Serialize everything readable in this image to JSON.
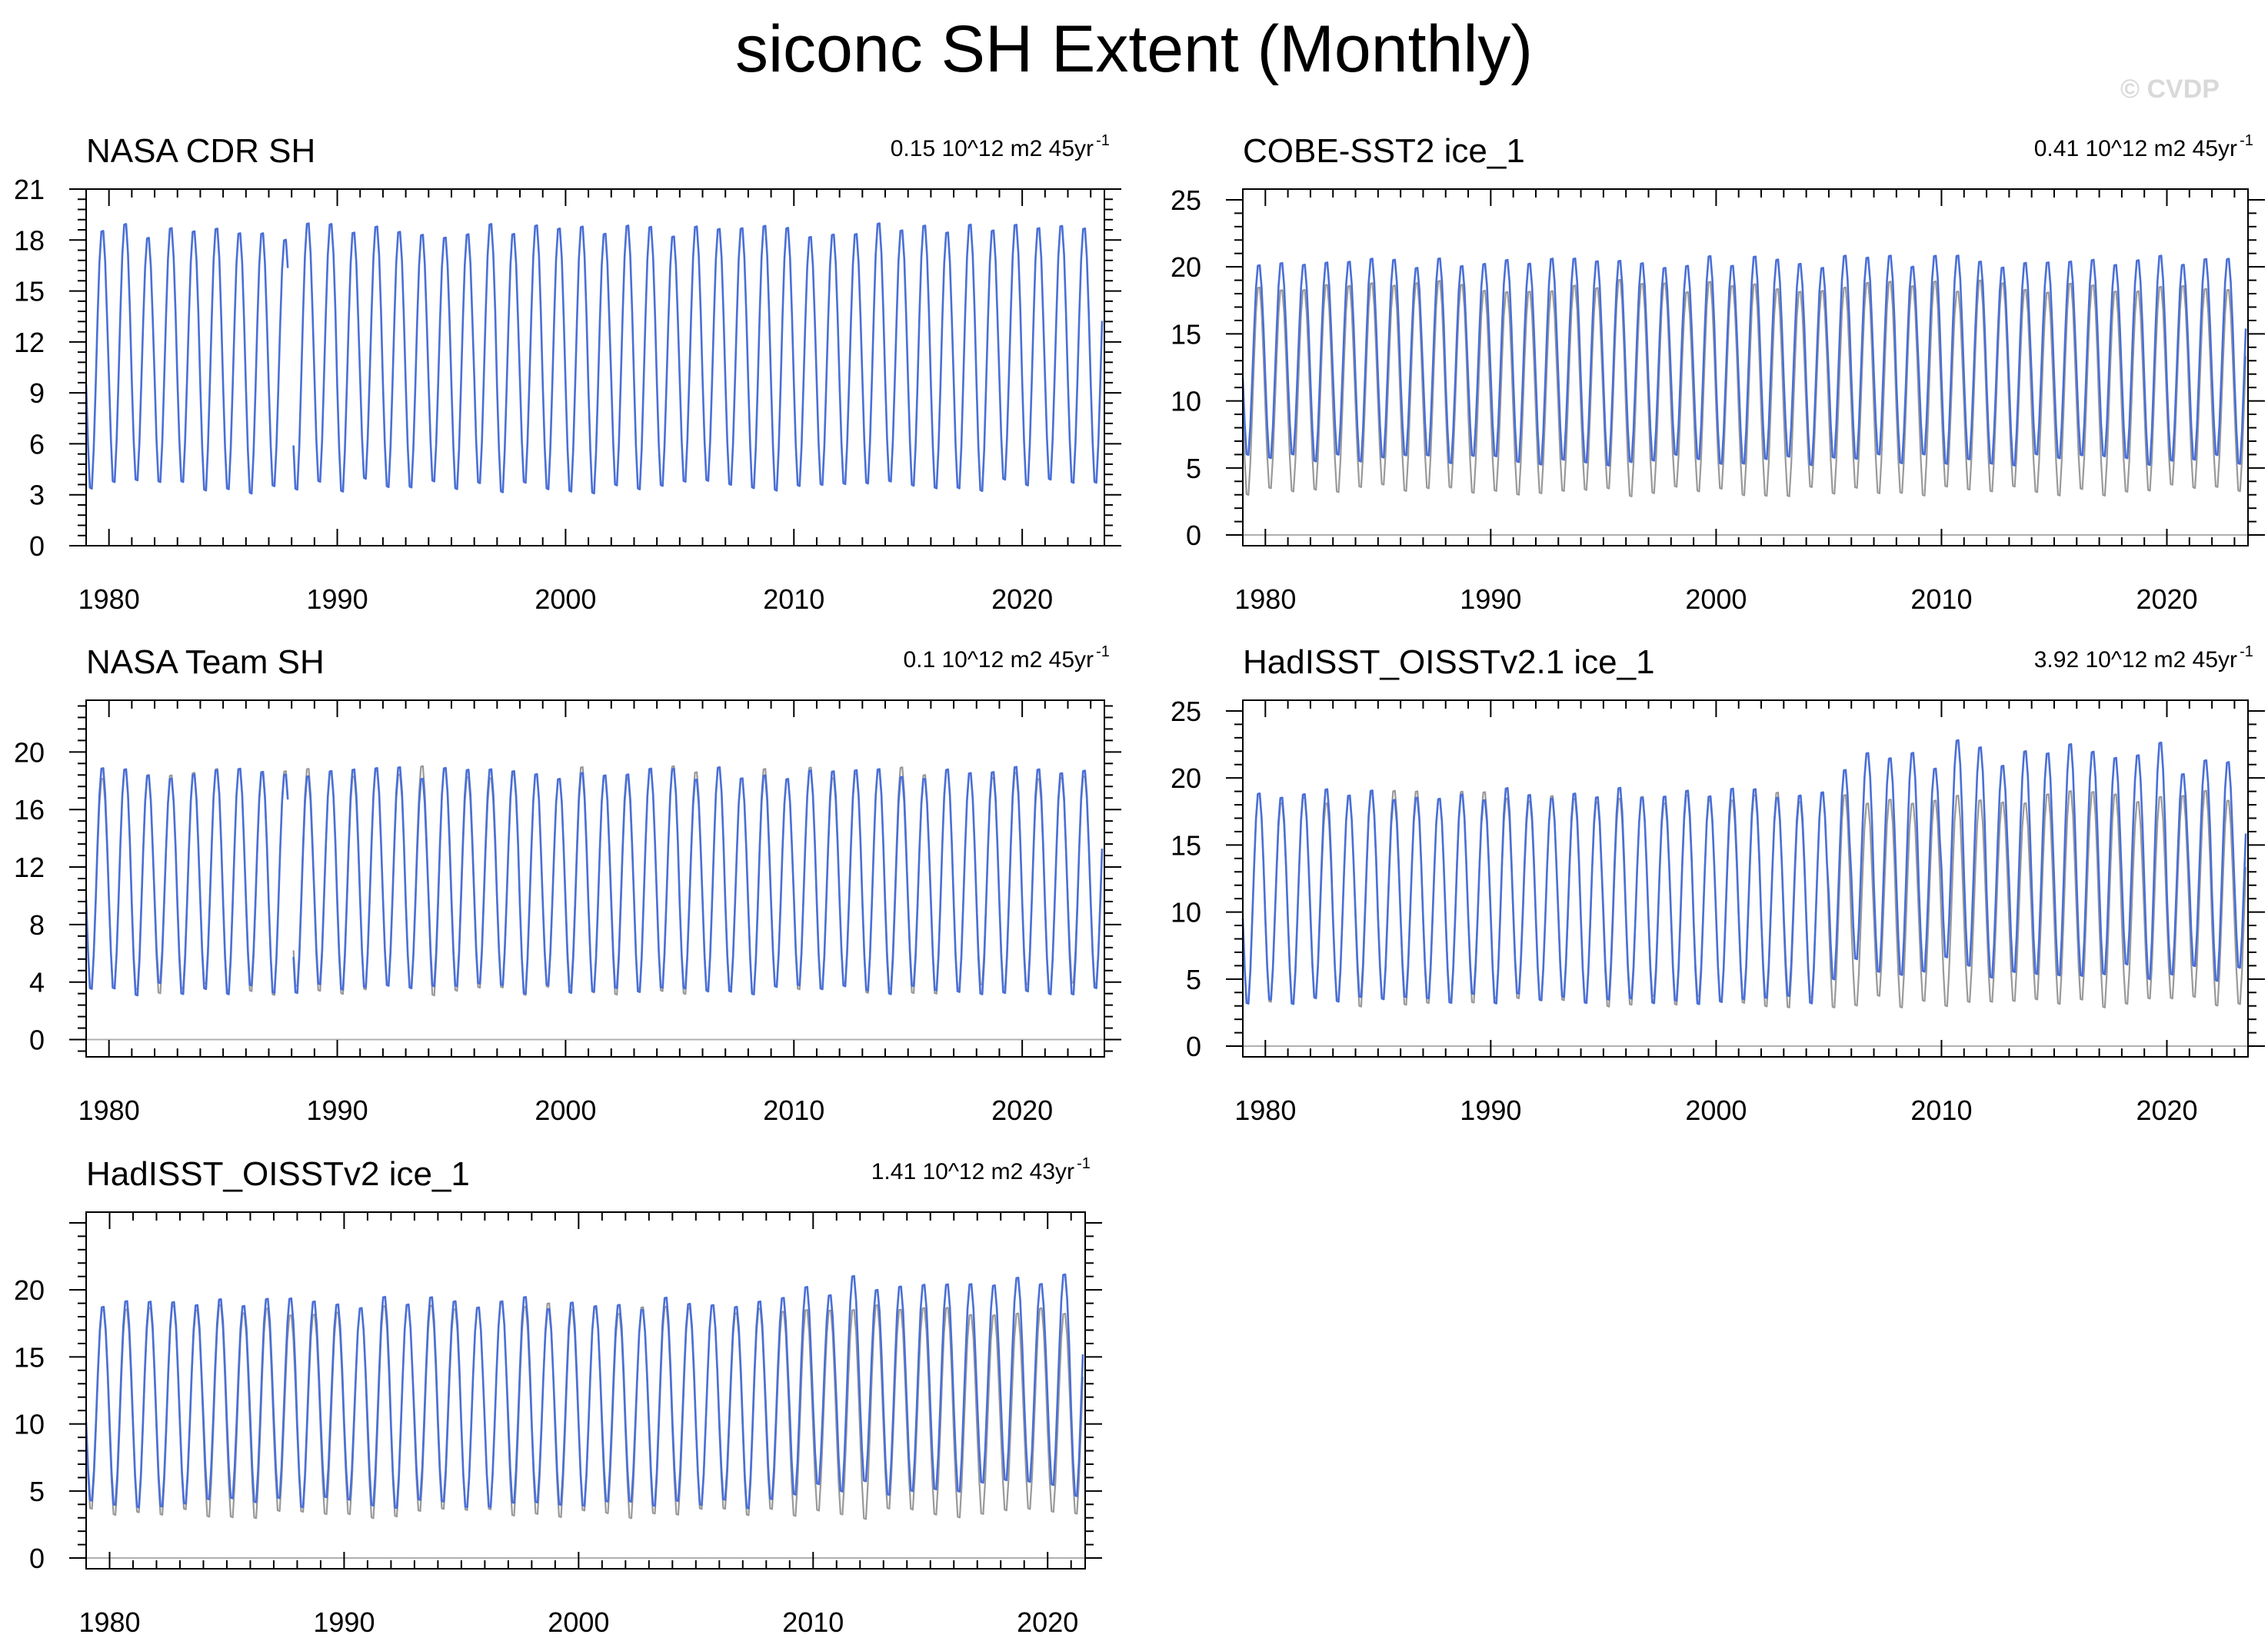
{
  "title": "siconc SH Extent (Monthly)",
  "watermark": "© CVDP",
  "chart_data": [
    {
      "type": "line",
      "title": "NASA CDR SH",
      "trend": "0.15 10^12 m2 45yr",
      "trend_exp": "-1",
      "xlim": [
        1979,
        2023.6
      ],
      "ylim": [
        0,
        21
      ],
      "xticks": [
        1980,
        1990,
        2000,
        2010,
        2020
      ],
      "yticks": [
        0,
        3,
        6,
        9,
        12,
        15,
        18,
        21
      ],
      "gap": [
        1987.9,
        1988.05
      ],
      "series": [
        {
          "color": "#4a6fd6",
          "x_start": 1979.0,
          "x_end": 2023.5,
          "mean_max": 18.7,
          "mean_min": 3.2,
          "amp_trend": 0.0,
          "min_trend": 0.0,
          "phase": 0.71,
          "seed": 1
        }
      ]
    },
    {
      "type": "line",
      "title": "COBE-SST2 ice_1",
      "trend": "0.41 10^12 m2 45yr",
      "trend_exp": "-1",
      "xlim": [
        1979,
        2023.6
      ],
      "ylim": [
        -0.8,
        25.8
      ],
      "xticks": [
        1980,
        1990,
        2000,
        2010,
        2020
      ],
      "yticks": [
        0,
        5,
        10,
        15,
        20,
        25
      ],
      "series": [
        {
          "color": "#999999",
          "x_start": 1979.0,
          "x_end": 2023.5,
          "mean_max": 18.8,
          "mean_min": 3.0,
          "amp_trend": 0.0,
          "min_trend": 0.0,
          "phase": 0.71,
          "seed": 2
        },
        {
          "color": "#4a6fd6",
          "x_start": 1979.0,
          "x_end": 2023.5,
          "mean_max": 20.6,
          "mean_min": 5.3,
          "amp_trend": 0.0,
          "min_trend": 0.0,
          "phase": 0.71,
          "seed": 3
        }
      ]
    },
    {
      "type": "line",
      "title": "NASA Team SH",
      "trend": "0.1 10^12 m2 45yr",
      "trend_exp": "-1",
      "xlim": [
        1979,
        2023.6
      ],
      "ylim": [
        -1.2,
        23.6
      ],
      "xticks": [
        1980,
        1990,
        2000,
        2010,
        2020
      ],
      "yticks": [
        0,
        4,
        8,
        12,
        16,
        20
      ],
      "gap": [
        1987.9,
        1988.05
      ],
      "series": [
        {
          "color": "#999999",
          "x_start": 1979.0,
          "x_end": 2023.5,
          "mean_max": 18.8,
          "mean_min": 3.2,
          "amp_trend": 0.0,
          "min_trend": 0.0,
          "phase": 0.71,
          "seed": 4
        },
        {
          "color": "#4a6fd6",
          "x_start": 1979.0,
          "x_end": 2023.5,
          "mean_max": 18.7,
          "mean_min": 3.2,
          "amp_trend": 0.0,
          "min_trend": 0.0,
          "phase": 0.71,
          "seed": 5
        }
      ]
    },
    {
      "type": "line",
      "title": "HadISST_OISSTv2.1 ice_1",
      "trend": "3.92 10^12 m2 45yr",
      "trend_exp": "-1",
      "xlim": [
        1979,
        2023.6
      ],
      "ylim": [
        -0.8,
        25.8
      ],
      "xticks": [
        1980,
        1990,
        2000,
        2010,
        2020
      ],
      "yticks": [
        0,
        5,
        10,
        15,
        20,
        25
      ],
      "series": [
        {
          "color": "#999999",
          "x_start": 1979.0,
          "x_end": 2023.5,
          "mean_max": 18.8,
          "mean_min": 3.0,
          "amp_trend": 0.0,
          "min_trend": 0.0,
          "phase": 0.71,
          "seed": 6
        },
        {
          "color": "#4a6fd6",
          "x_start": 1979.0,
          "x_end": 2023.5,
          "mean_max": 19.0,
          "mean_min": 3.2,
          "amp_trend": 0.0,
          "min_trend": 0.0,
          "phase": 0.71,
          "seed": 7,
          "shift_year": 2005.0,
          "shift_max": 3.2,
          "shift_min": 2.4
        }
      ]
    },
    {
      "type": "line",
      "title": "HadISST_OISSTv2 ice_1",
      "trend": "1.41 10^12 m2 43yr",
      "trend_exp": "-1",
      "xlim": [
        1979,
        2021.6
      ],
      "ylim": [
        -0.8,
        25.8
      ],
      "xticks": [
        1980,
        1990,
        2000,
        2010,
        2020
      ],
      "yticks": [
        0,
        5,
        10,
        15,
        20
      ],
      "series": [
        {
          "color": "#999999",
          "x_start": 1979.0,
          "x_end": 2021.5,
          "mean_max": 18.8,
          "mean_min": 3.0,
          "amp_trend": 0.0,
          "min_trend": 0.0,
          "phase": 0.71,
          "seed": 8
        },
        {
          "color": "#4a6fd6",
          "x_start": 1979.0,
          "x_end": 2021.5,
          "mean_max": 19.2,
          "mean_min": 3.8,
          "amp_trend": 0.0,
          "min_trend": 0.0,
          "phase": 0.71,
          "seed": 9,
          "shift_year": 2009.0,
          "shift_max": 1.6,
          "shift_min": 1.4
        }
      ]
    }
  ]
}
